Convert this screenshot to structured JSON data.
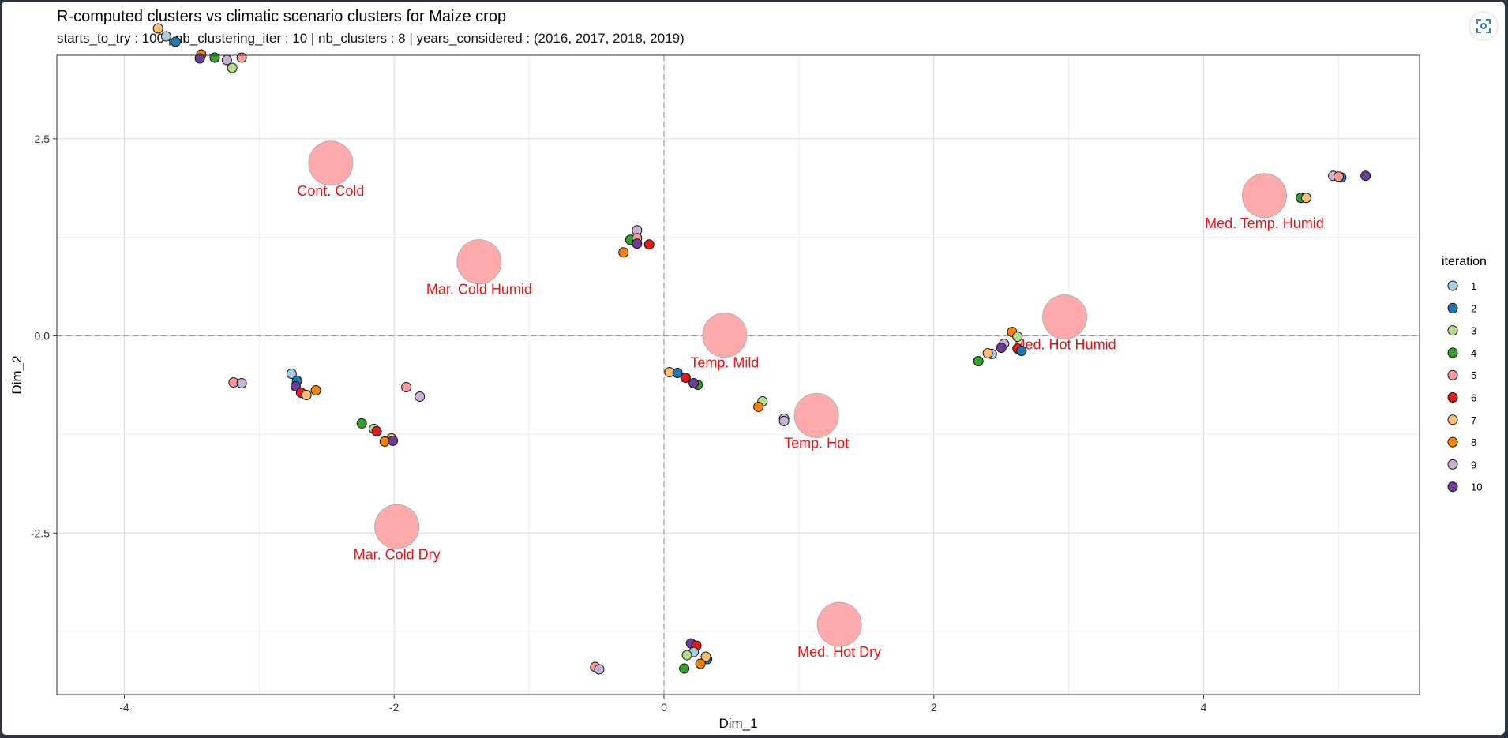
{
  "chart_data": {
    "type": "scatter",
    "title": "R-computed clusters vs climatic scenario clusters for Maize crop",
    "subtitle": "starts_to_try : 100 | nb_clustering_iter : 10 | nb_clusters : 8 | years_considered : (2016, 2017, 2018, 2019)",
    "xlabel": "Dim_1",
    "ylabel": "Dim_2",
    "xlim": [
      -4.5,
      5.6
    ],
    "ylim": [
      -4.55,
      3.56
    ],
    "x_ticks": [
      -4,
      -2,
      0,
      2,
      4
    ],
    "x_tick_labels": [
      "-4",
      "-2",
      "0",
      "2",
      "4"
    ],
    "y_ticks": [
      -2.5,
      0.0,
      2.5
    ],
    "y_tick_labels": [
      "-2.5",
      "0.0",
      "2.5"
    ],
    "grid": true,
    "reference_lines": {
      "x": 0,
      "y": 0
    },
    "legend": {
      "title": "iteration",
      "placement": "right",
      "entries": [
        {
          "label": "1",
          "color": "#a6cee3"
        },
        {
          "label": "2",
          "color": "#1f78b4"
        },
        {
          "label": "3",
          "color": "#b2df8a"
        },
        {
          "label": "4",
          "color": "#33a02c"
        },
        {
          "label": "5",
          "color": "#fb9a99"
        },
        {
          "label": "6",
          "color": "#e31a1c"
        },
        {
          "label": "7",
          "color": "#fdbf6f"
        },
        {
          "label": "8",
          "color": "#ff7f00"
        },
        {
          "label": "9",
          "color": "#cab2d6"
        },
        {
          "label": "10",
          "color": "#6a3d9a"
        }
      ]
    },
    "scenario_clusters": [
      {
        "label": "Cont. Cold",
        "x": -2.47,
        "y": 2.19
      },
      {
        "label": "Mar. Cold Humid",
        "x": -1.37,
        "y": 0.94
      },
      {
        "label": "Temp. Mild",
        "x": 0.45,
        "y": 0.01
      },
      {
        "label": "Temp. Hot",
        "x": 1.13,
        "y": -1.01
      },
      {
        "label": "Med. Hot Humid",
        "x": 2.97,
        "y": 0.24
      },
      {
        "label": "Med. Temp. Humid",
        "x": 4.45,
        "y": 1.78
      },
      {
        "label": "Mar. Cold Dry",
        "x": -1.98,
        "y": -2.42
      },
      {
        "label": "Med. Hot Dry",
        "x": 1.3,
        "y": -3.66
      }
    ],
    "scenario_color": "#ffaaaa",
    "scenario_label_color": "#ee1111",
    "points": [
      {
        "it": 7,
        "x": -3.75,
        "y": 3.9
      },
      {
        "it": 1,
        "x": -3.69,
        "y": 3.8
      },
      {
        "it": 2,
        "x": -3.62,
        "y": 3.73
      },
      {
        "it": 8,
        "x": -3.43,
        "y": 3.57
      },
      {
        "it": 10,
        "x": -3.44,
        "y": 3.52
      },
      {
        "it": 4,
        "x": -3.33,
        "y": 3.53
      },
      {
        "it": 9,
        "x": -3.24,
        "y": 3.5
      },
      {
        "it": 3,
        "x": -3.2,
        "y": 3.4
      },
      {
        "it": 5,
        "x": -3.13,
        "y": 3.53
      },
      {
        "it": 5,
        "x": -3.19,
        "y": -0.59
      },
      {
        "it": 9,
        "x": -3.13,
        "y": -0.6
      },
      {
        "it": 1,
        "x": -2.76,
        "y": -0.48
      },
      {
        "it": 2,
        "x": -2.72,
        "y": -0.57
      },
      {
        "it": 10,
        "x": -2.73,
        "y": -0.64
      },
      {
        "it": 6,
        "x": -2.69,
        "y": -0.72
      },
      {
        "it": 7,
        "x": -2.65,
        "y": -0.75
      },
      {
        "it": 8,
        "x": -2.58,
        "y": -0.69
      },
      {
        "it": 4,
        "x": -2.24,
        "y": -1.11
      },
      {
        "it": 3,
        "x": -2.15,
        "y": -1.18
      },
      {
        "it": 6,
        "x": -2.13,
        "y": -1.21
      },
      {
        "it": 7,
        "x": -2.02,
        "y": -1.3
      },
      {
        "it": 8,
        "x": -2.07,
        "y": -1.34
      },
      {
        "it": 10,
        "x": -2.01,
        "y": -1.33
      },
      {
        "it": 5,
        "x": -1.91,
        "y": -0.65
      },
      {
        "it": 9,
        "x": -1.81,
        "y": -0.77
      },
      {
        "it": 8,
        "x": -0.3,
        "y": 1.06
      },
      {
        "it": 4,
        "x": -0.25,
        "y": 1.22
      },
      {
        "it": 9,
        "x": -0.2,
        "y": 1.34
      },
      {
        "it": 5,
        "x": -0.2,
        "y": 1.24
      },
      {
        "it": 10,
        "x": -0.2,
        "y": 1.17
      },
      {
        "it": 6,
        "x": -0.11,
        "y": 1.16
      },
      {
        "it": 7,
        "x": 0.04,
        "y": -0.46
      },
      {
        "it": 2,
        "x": 0.1,
        "y": -0.47
      },
      {
        "it": 6,
        "x": 0.16,
        "y": -0.53
      },
      {
        "it": 4,
        "x": 0.25,
        "y": -0.62
      },
      {
        "it": 10,
        "x": 0.22,
        "y": -0.6
      },
      {
        "it": 3,
        "x": 0.73,
        "y": -0.83
      },
      {
        "it": 8,
        "x": 0.7,
        "y": -0.9
      },
      {
        "it": 1,
        "x": 0.89,
        "y": -1.05
      },
      {
        "it": 9,
        "x": 0.89,
        "y": -1.08
      },
      {
        "it": 5,
        "x": -0.51,
        "y": -4.2
      },
      {
        "it": 9,
        "x": -0.48,
        "y": -4.23
      },
      {
        "it": 10,
        "x": 0.2,
        "y": -3.9
      },
      {
        "it": 6,
        "x": 0.24,
        "y": -3.93
      },
      {
        "it": 1,
        "x": 0.22,
        "y": -4.01
      },
      {
        "it": 3,
        "x": 0.17,
        "y": -4.05
      },
      {
        "it": 2,
        "x": 0.32,
        "y": -4.1
      },
      {
        "it": 7,
        "x": 0.31,
        "y": -4.07
      },
      {
        "it": 8,
        "x": 0.27,
        "y": -4.16
      },
      {
        "it": 4,
        "x": 0.15,
        "y": -4.22
      },
      {
        "it": 4,
        "x": 2.33,
        "y": -0.32
      },
      {
        "it": 1,
        "x": 2.43,
        "y": -0.23
      },
      {
        "it": 7,
        "x": 2.4,
        "y": -0.22
      },
      {
        "it": 9,
        "x": 2.52,
        "y": -0.1
      },
      {
        "it": 10,
        "x": 2.5,
        "y": -0.15
      },
      {
        "it": 8,
        "x": 2.58,
        "y": 0.05
      },
      {
        "it": 3,
        "x": 2.62,
        "y": -0.01
      },
      {
        "it": 6,
        "x": 2.62,
        "y": -0.16
      },
      {
        "it": 2,
        "x": 2.65,
        "y": -0.19
      },
      {
        "it": 4,
        "x": 4.72,
        "y": 1.75
      },
      {
        "it": 7,
        "x": 4.76,
        "y": 1.75
      },
      {
        "it": 9,
        "x": 4.96,
        "y": 2.03
      },
      {
        "it": 2,
        "x": 5.02,
        "y": 2.01
      },
      {
        "it": 5,
        "x": 5.0,
        "y": 2.02
      },
      {
        "it": 10,
        "x": 5.2,
        "y": 2.03
      }
    ]
  }
}
